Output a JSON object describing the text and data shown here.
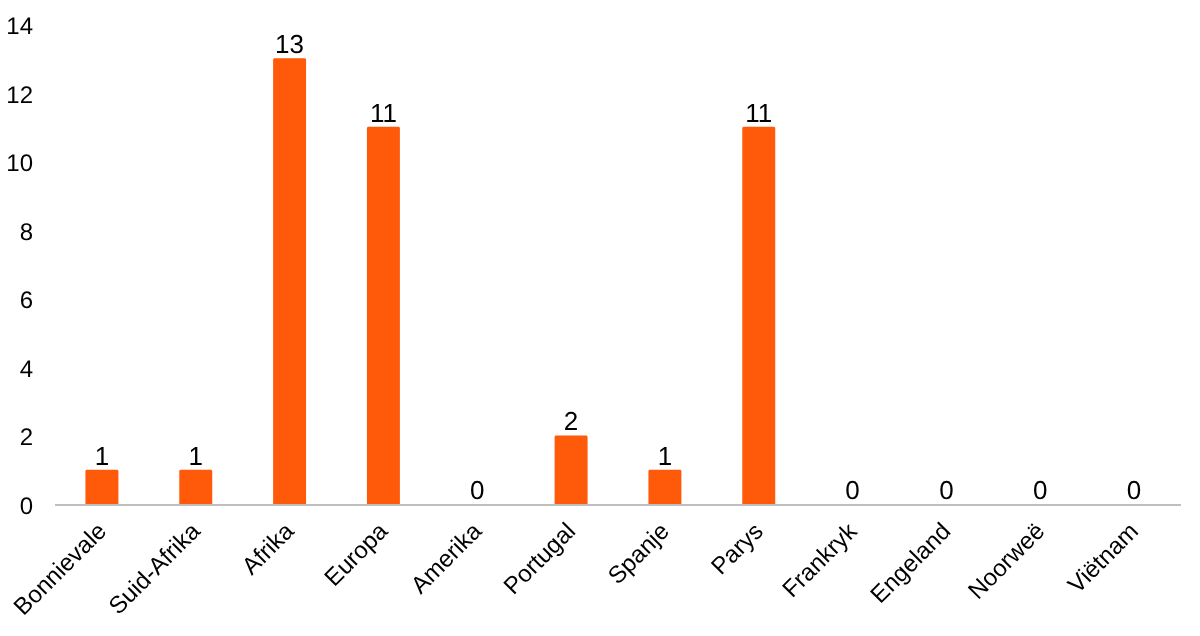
{
  "chart_data": {
    "type": "bar",
    "categories": [
      "Bonnievale",
      "Suid-Afrika",
      "Afrika",
      "Europa",
      "Amerika",
      "Portugal",
      "Spanje",
      "Parys",
      "Frankryk",
      "Engeland",
      "Noorweë",
      "Viëtnam"
    ],
    "values": [
      1,
      1,
      13,
      11,
      0,
      2,
      1,
      11,
      0,
      0,
      0,
      0
    ],
    "color": "#ff5a0a",
    "ylim": [
      0,
      14
    ],
    "yticks": [
      0,
      2,
      4,
      6,
      8,
      10,
      12,
      14
    ],
    "grid": false,
    "data_labels": true
  }
}
